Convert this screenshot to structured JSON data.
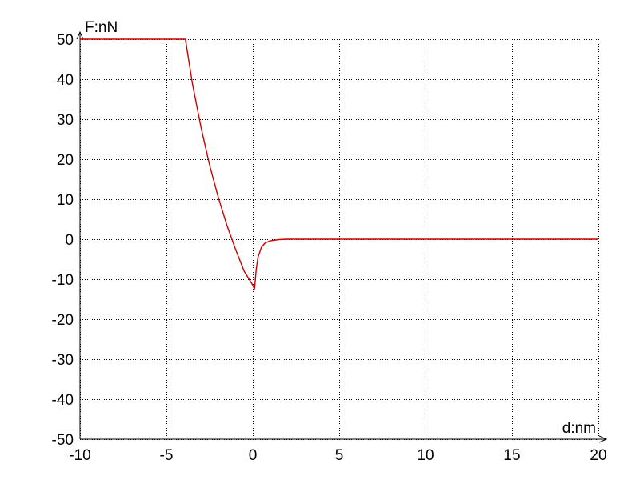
{
  "chart_data": {
    "type": "line",
    "xlabel": "d:nm",
    "ylabel": "F:nN",
    "xlim": [
      -10,
      20
    ],
    "ylim": [
      -50,
      50
    ],
    "x_ticks": [
      -10,
      -5,
      0,
      5,
      10,
      15,
      20
    ],
    "y_ticks": [
      -50,
      -40,
      -30,
      -20,
      -10,
      0,
      10,
      20,
      30,
      40,
      50
    ],
    "x_tick_labels": [
      "-10",
      "-5",
      "0",
      "5",
      "10",
      "15",
      "20"
    ],
    "y_tick_labels": [
      "-50",
      "-40",
      "-30",
      "-20",
      "-10",
      "0",
      "10",
      "20",
      "30",
      "40",
      "50"
    ],
    "grid": true,
    "grid_style": "dotted",
    "series_color": "#cc0000",
    "series": [
      {
        "x": [
          -10,
          -3.9,
          -3.5,
          -3.0,
          -2.5,
          -2.0,
          -1.5,
          -1.0,
          -0.5,
          0,
          0.1,
          0.2,
          0.3,
          0.5,
          0.7,
          1.0,
          1.5,
          2,
          5,
          10,
          15,
          20
        ],
        "y": [
          50,
          50,
          39,
          28,
          18.5,
          10.5,
          3.5,
          -2.5,
          -8,
          -11.5,
          -12.5,
          -7.5,
          -4.5,
          -2,
          -1,
          -0.4,
          -0.1,
          0,
          0,
          0,
          0,
          0
        ]
      }
    ]
  }
}
